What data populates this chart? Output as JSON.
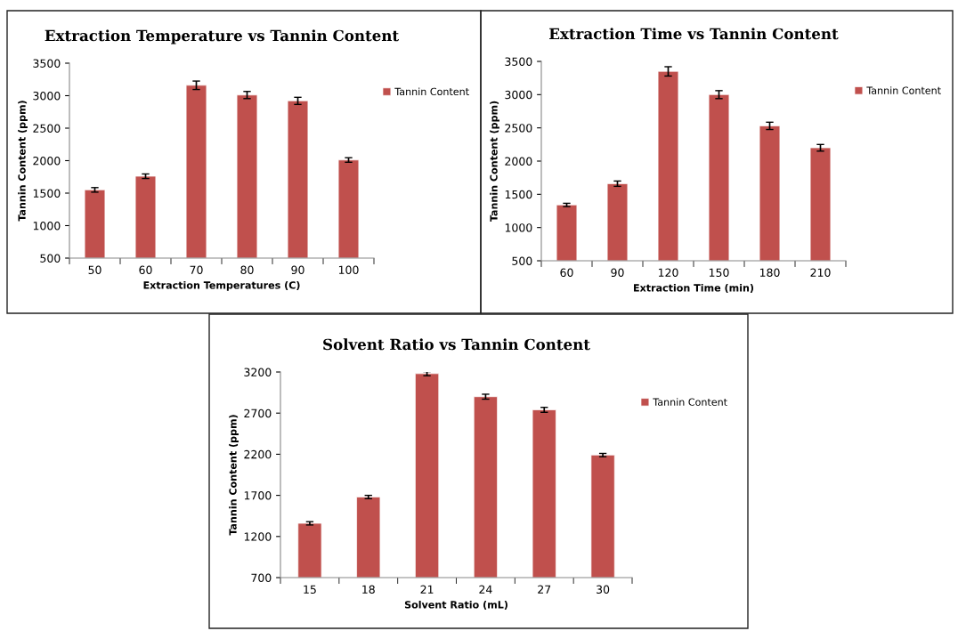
{
  "chart_data": [
    {
      "type": "bar",
      "title": "Extraction Temperature vs Tannin Content",
      "xlabel": "Extraction Temperatures (C)",
      "ylabel": "Tannin Content (ppm)",
      "categories": [
        "50",
        "60",
        "70",
        "80",
        "90",
        "100"
      ],
      "ylim": [
        500,
        3500
      ],
      "yticks": [
        500,
        1000,
        1500,
        2000,
        2500,
        3000,
        3500
      ],
      "legend": "right",
      "grid": false,
      "series": [
        {
          "name": "Tannin Content",
          "color": "#c0504d",
          "values": [
            1550,
            1760,
            3160,
            3010,
            2920,
            2010
          ],
          "errors": [
            35,
            35,
            65,
            55,
            55,
            35
          ]
        }
      ]
    },
    {
      "type": "bar",
      "title": "Extraction Time vs Tannin Content",
      "xlabel": "Extraction Time (min)",
      "ylabel": "Tannin Content (ppm)",
      "categories": [
        "60",
        "90",
        "120",
        "150",
        "180",
        "210"
      ],
      "ylim": [
        500,
        3500
      ],
      "yticks": [
        500,
        1000,
        1500,
        2000,
        2500,
        3000,
        3500
      ],
      "legend": "right",
      "grid": false,
      "series": [
        {
          "name": "Tannin Content",
          "color": "#c0504d",
          "values": [
            1340,
            1660,
            3350,
            3000,
            2530,
            2200
          ],
          "errors": [
            25,
            40,
            70,
            60,
            55,
            50
          ]
        }
      ]
    },
    {
      "type": "bar",
      "title": "Solvent Ratio vs Tannin Content",
      "xlabel": "Solvent Ratio (mL)",
      "ylabel": "Tannin Content (ppm)",
      "categories": [
        "15",
        "18",
        "21",
        "24",
        "27",
        "30"
      ],
      "ylim": [
        700,
        3200
      ],
      "yticks": [
        700,
        1200,
        1700,
        2200,
        2700,
        3200
      ],
      "legend": "right",
      "grid": false,
      "series": [
        {
          "name": "Tannin Content",
          "color": "#c0504d",
          "values": [
            1360,
            1680,
            3180,
            2900,
            2740,
            2190
          ],
          "errors": [
            20,
            20,
            25,
            30,
            30,
            20
          ]
        }
      ]
    }
  ]
}
